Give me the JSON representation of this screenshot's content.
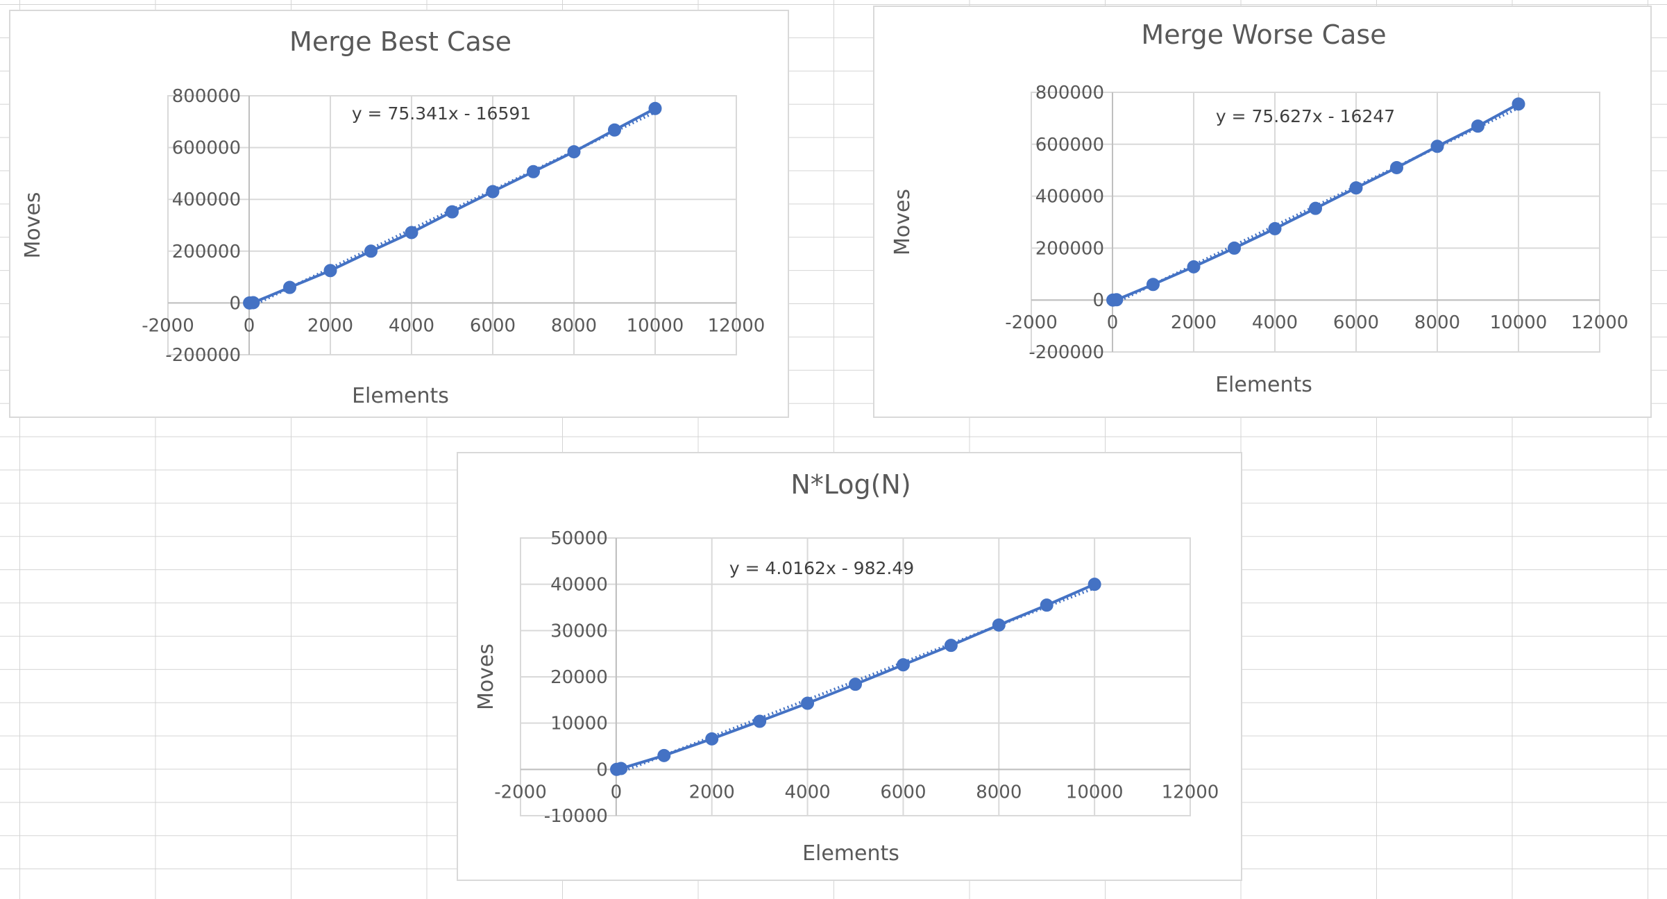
{
  "chart_data": [
    {
      "type": "scatter",
      "title": "Merge Best Case",
      "xlabel": "Elements",
      "ylabel": "Moves",
      "xlim": [
        -2000,
        12000
      ],
      "ylim": [
        -200000,
        800000
      ],
      "xticks": [
        "-2000",
        "0",
        "2000",
        "4000",
        "6000",
        "8000",
        "10000",
        "12000"
      ],
      "yticks": [
        "-200000",
        "0",
        "200000",
        "400000",
        "600000",
        "800000"
      ],
      "grid": true,
      "series": [
        {
          "x": [
            10,
            100,
            1000,
            2000,
            3000,
            4000,
            5000,
            6000,
            7000,
            8000,
            9000,
            10000
          ],
          "y": [
            30,
            1200,
            60000,
            125000,
            200000,
            272000,
            352000,
            430000,
            507000,
            584000,
            668000,
            751000
          ]
        }
      ],
      "trendline": {
        "style": "dotted linear",
        "slope": 75.341,
        "intercept": -16591,
        "equation": "y = 75.341x - 16591"
      },
      "color": "#4472c4"
    },
    {
      "type": "scatter",
      "title": "Merge Worse Case",
      "xlabel": "Elements",
      "ylabel": "Moves",
      "xlim": [
        -2000,
        12000
      ],
      "ylim": [
        -200000,
        800000
      ],
      "xticks": [
        "-2000",
        "0",
        "2000",
        "4000",
        "6000",
        "8000",
        "10000",
        "12000"
      ],
      "yticks": [
        "-200000",
        "0",
        "200000",
        "400000",
        "600000",
        "800000"
      ],
      "grid": true,
      "series": [
        {
          "x": [
            10,
            100,
            1000,
            2000,
            3000,
            4000,
            5000,
            6000,
            7000,
            8000,
            9000,
            10000
          ],
          "y": [
            30,
            1200,
            60000,
            128000,
            200000,
            275000,
            353000,
            432000,
            510000,
            592000,
            670000,
            755000
          ]
        }
      ],
      "trendline": {
        "style": "dotted linear",
        "slope": 75.627,
        "intercept": -16247,
        "equation": "y = 75.627x - 16247"
      },
      "color": "#4472c4"
    },
    {
      "type": "scatter",
      "title": "N*Log(N)",
      "xlabel": "Elements",
      "ylabel": "Moves",
      "xlim": [
        -2000,
        12000
      ],
      "ylim": [
        -10000,
        50000
      ],
      "xticks": [
        "-2000",
        "0",
        "2000",
        "4000",
        "6000",
        "8000",
        "10000",
        "12000"
      ],
      "yticks": [
        "-10000",
        "0",
        "10000",
        "20000",
        "30000",
        "40000",
        "50000"
      ],
      "grid": true,
      "series": [
        {
          "x": [
            10,
            100,
            1000,
            2000,
            3000,
            4000,
            5000,
            6000,
            7000,
            8000,
            9000,
            10000
          ],
          "y": [
            10,
            200,
            3000,
            6600,
            10400,
            14300,
            18400,
            22600,
            26800,
            31200,
            35500,
            40000
          ]
        }
      ],
      "trendline": {
        "style": "dotted linear",
        "slope": 4.0162,
        "intercept": -982.49,
        "equation": "y = 4.0162x - 982.49"
      },
      "color": "#4472c4"
    }
  ]
}
